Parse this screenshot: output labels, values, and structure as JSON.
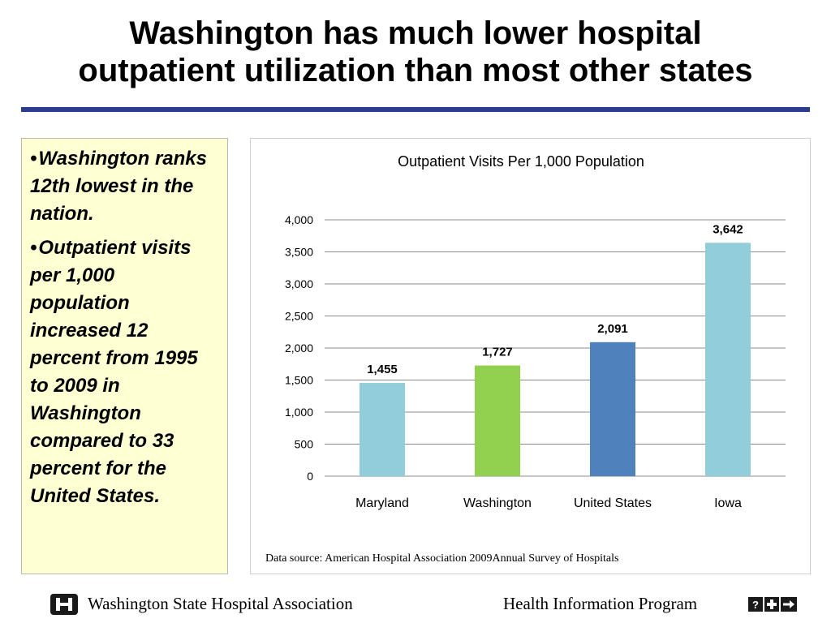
{
  "title": {
    "line1": "Washington has much lower hospital",
    "line2": "outpatient utilization than most other states"
  },
  "bullets": [
    "Washington ranks 12th lowest in the nation.",
    "Outpatient visits per 1,000 population increased 12 percent from 1995 to 2009 in Washington compared to 33 percent for the United States."
  ],
  "chart_data": {
    "type": "bar",
    "title": "Outpatient Visits Per 1,000 Population",
    "categories": [
      "Maryland",
      "Washington",
      "United States",
      "Iowa"
    ],
    "values": [
      1455,
      1727,
      2091,
      3642
    ],
    "value_labels": [
      "1,455",
      "1,727",
      "2,091",
      "3,642"
    ],
    "bar_colors": [
      "#92cddc",
      "#92d050",
      "#4f81bd",
      "#92cddc"
    ],
    "ylim": [
      0,
      4000
    ],
    "yticks": [
      0,
      500,
      1000,
      1500,
      2000,
      2500,
      3000,
      3500,
      4000
    ],
    "ytick_labels": [
      "0",
      "500",
      "1,000",
      "1,500",
      "2,000",
      "2,500",
      "3,000",
      "3,500",
      "4,000"
    ],
    "xlabel": "",
    "ylabel": "",
    "grid": true,
    "legend": "none"
  },
  "source_note": "Data source:  American Hospital Association 2009Annual Survey of Hospitals",
  "footer": {
    "org": "Washington State Hospital Association",
    "program": "Health Information Program",
    "logo_icon": "wsha-logo-icon",
    "program_icon": "hip-arrows-icon"
  },
  "colors": {
    "rule": "#2a3d8f",
    "side_box_bg": "#ffffd4"
  }
}
